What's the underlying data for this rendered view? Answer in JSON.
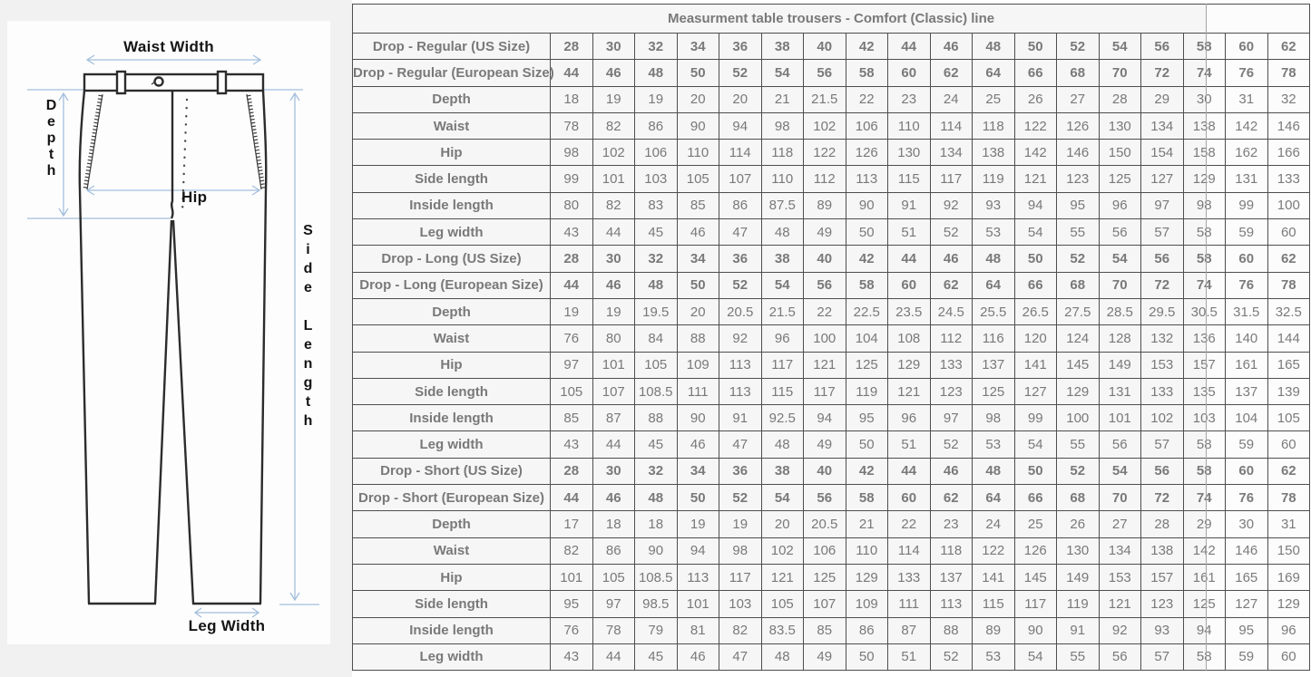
{
  "diagram": {
    "labels": {
      "waist_width": "Waist Width",
      "depth": "Depth",
      "hip": "Hip",
      "side_length": "Side Length",
      "leg_width": "Leg Width"
    },
    "colors": {
      "outline": "#2c2c2c",
      "guide_blue": "#a3bedd"
    }
  },
  "table": {
    "title": "Measurment table trousers - Comfort (Classic) line",
    "sections": [
      {
        "rows": [
          {
            "label": "Drop - Regular (US Size)",
            "type": "size",
            "values": [
              28,
              30,
              32,
              34,
              36,
              38,
              40,
              42,
              44,
              46,
              48,
              50,
              52,
              54,
              56,
              58,
              60,
              62
            ]
          },
          {
            "label": "Drop - Regular (European Size)",
            "type": "size",
            "values": [
              44,
              46,
              48,
              50,
              52,
              54,
              56,
              58,
              60,
              62,
              64,
              66,
              68,
              70,
              72,
              74,
              76,
              78
            ]
          },
          {
            "label": "Depth",
            "type": "light",
            "values": [
              18,
              19,
              19,
              20,
              20,
              21,
              21.5,
              22,
              23,
              24,
              25,
              26,
              27,
              28,
              29,
              30,
              31,
              32
            ]
          },
          {
            "label": "Waist",
            "type": "shade",
            "values": [
              78,
              82,
              86,
              90,
              94,
              98,
              102,
              106,
              110,
              114,
              118,
              122,
              126,
              130,
              134,
              138,
              142,
              146
            ]
          },
          {
            "label": "Hip",
            "type": "light",
            "values": [
              98,
              102,
              106,
              110,
              114,
              118,
              122,
              126,
              130,
              134,
              138,
              142,
              146,
              150,
              154,
              158,
              162,
              166
            ]
          },
          {
            "label": "Side length",
            "type": "shade",
            "values": [
              99,
              101,
              103,
              105,
              107,
              110,
              112,
              113,
              115,
              117,
              119,
              121,
              123,
              125,
              127,
              129,
              131,
              133
            ]
          },
          {
            "label": "Inside length",
            "type": "light",
            "values": [
              80,
              82,
              83,
              85,
              86,
              87.5,
              89,
              90,
              91,
              92,
              93,
              94,
              95,
              96,
              97,
              98,
              99,
              100
            ]
          },
          {
            "label": "Leg width",
            "type": "shade",
            "values": [
              43,
              44,
              45,
              46,
              47,
              48,
              49,
              50,
              51,
              52,
              53,
              54,
              55,
              56,
              57,
              58,
              59,
              60
            ]
          }
        ]
      },
      {
        "rows": [
          {
            "label": "Drop - Long (US Size)",
            "type": "size",
            "values": [
              28,
              30,
              32,
              34,
              36,
              38,
              40,
              42,
              44,
              46,
              48,
              50,
              52,
              54,
              56,
              58,
              60,
              62
            ]
          },
          {
            "label": "Drop - Long (European Size)",
            "type": "size",
            "values": [
              44,
              46,
              48,
              50,
              52,
              54,
              56,
              58,
              60,
              62,
              64,
              66,
              68,
              70,
              72,
              74,
              76,
              78
            ]
          },
          {
            "label": "Depth",
            "type": "light",
            "values": [
              19,
              19,
              19.5,
              20,
              20.5,
              21.5,
              22,
              22.5,
              23.5,
              24.5,
              25.5,
              26.5,
              27.5,
              28.5,
              29.5,
              30.5,
              31.5,
              32.5
            ]
          },
          {
            "label": "Waist",
            "type": "shade",
            "values": [
              76,
              80,
              84,
              88,
              92,
              96,
              100,
              104,
              108,
              112,
              116,
              120,
              124,
              128,
              132,
              136,
              140,
              144
            ]
          },
          {
            "label": "Hip",
            "type": "light",
            "values": [
              97,
              101,
              105,
              109,
              113,
              117,
              121,
              125,
              129,
              133,
              137,
              141,
              145,
              149,
              153,
              157,
              161,
              165
            ]
          },
          {
            "label": "Side length",
            "type": "shade",
            "values": [
              105,
              107,
              108.5,
              111,
              113,
              115,
              117,
              119,
              121,
              123,
              125,
              127,
              129,
              131,
              133,
              135,
              137,
              139
            ]
          },
          {
            "label": "Inside length",
            "type": "light",
            "values": [
              85,
              87,
              88,
              90,
              91,
              92.5,
              94,
              95,
              96,
              97,
              98,
              99,
              100,
              101,
              102,
              103,
              104,
              105
            ]
          },
          {
            "label": "Leg width",
            "type": "shade",
            "values": [
              43,
              44,
              45,
              46,
              47,
              48,
              49,
              50,
              51,
              52,
              53,
              54,
              55,
              56,
              57,
              58,
              59,
              60
            ]
          }
        ]
      },
      {
        "rows": [
          {
            "label": "Drop - Short (US Size)",
            "type": "size",
            "values": [
              28,
              30,
              32,
              34,
              36,
              38,
              40,
              42,
              44,
              46,
              48,
              50,
              52,
              54,
              56,
              58,
              60,
              62
            ]
          },
          {
            "label": "Drop - Short (European Size)",
            "type": "size",
            "values": [
              44,
              46,
              48,
              50,
              52,
              54,
              56,
              58,
              60,
              62,
              64,
              66,
              68,
              70,
              72,
              74,
              76,
              78
            ]
          },
          {
            "label": "Depth",
            "type": "light",
            "values": [
              17,
              18,
              18,
              19,
              19,
              20,
              20.5,
              21,
              22,
              23,
              24,
              25,
              26,
              27,
              28,
              29,
              30,
              31
            ]
          },
          {
            "label": "Waist",
            "type": "shade",
            "values": [
              82,
              86,
              90,
              94,
              98,
              102,
              106,
              110,
              114,
              118,
              122,
              126,
              130,
              134,
              138,
              142,
              146,
              150
            ]
          },
          {
            "label": "Hip",
            "type": "light",
            "values": [
              101,
              105,
              108.5,
              113,
              117,
              121,
              125,
              129,
              133,
              137,
              141,
              145,
              149,
              153,
              157,
              161,
              165,
              169
            ]
          },
          {
            "label": "Side length",
            "type": "shade",
            "values": [
              95,
              97,
              98.5,
              101,
              103,
              105,
              107,
              109,
              111,
              113,
              115,
              117,
              119,
              121,
              123,
              125,
              127,
              129
            ]
          },
          {
            "label": "Inside length",
            "type": "light",
            "values": [
              76,
              78,
              79,
              81,
              82,
              83.5,
              85,
              86,
              87,
              88,
              89,
              90,
              91,
              92,
              93,
              94,
              95,
              96
            ]
          },
          {
            "label": "Leg width",
            "type": "shade",
            "values": [
              43,
              44,
              45,
              46,
              47,
              48,
              49,
              50,
              51,
              52,
              53,
              54,
              55,
              56,
              57,
              58,
              59,
              60
            ]
          }
        ]
      }
    ]
  }
}
